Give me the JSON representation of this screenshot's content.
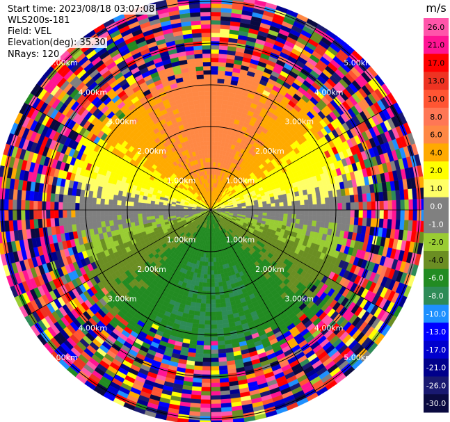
{
  "info": {
    "start_time": "Start time: 2023/08/18 03:07:08",
    "instrument": "WLS200s-181",
    "field": "Field: VEL",
    "elevation": "Elevation(deg): 35.30",
    "nrays": "NRays: 120"
  },
  "chart_data": {
    "type": "heatmap",
    "projection": "polar-ppi",
    "field": "VEL",
    "units": "m/s",
    "elevation_deg": 35.3,
    "n_rays": 120,
    "range_rings_km": [
      1,
      2,
      3,
      4,
      5
    ],
    "range_ring_labels": [
      "1.00km",
      "2.00km",
      "3.00km",
      "4.00km",
      "5.00km"
    ],
    "spoke_angles_deg": [
      0,
      30,
      60,
      90,
      120,
      150,
      180,
      210,
      240,
      270,
      300,
      330
    ],
    "velocity_pattern": {
      "north_sector_ms": 7,
      "south_sector_ms": -6,
      "east_west_ms": 0,
      "clean_range_km": 3.0,
      "noise_beyond_km": 3.2
    },
    "colorbar": {
      "label": "m/s",
      "ticks": [
        "26.0",
        "21.0",
        "17.0",
        "13.0",
        "10.0",
        "8.0",
        "6.0",
        "4.0",
        "2.0",
        "1.0",
        "0.0",
        "-1.0",
        "-2.0",
        "-4.0",
        "-6.0",
        "-8.0",
        "-10.0",
        "-13.0",
        "-17.0",
        "-21.0",
        "-26.0",
        "-30.0"
      ],
      "colors": [
        "#ff55aa",
        "#ff1493",
        "#ff0000",
        "#ee3322",
        "#ff5533",
        "#ff7755",
        "#ff8844",
        "#ffaa00",
        "#ffff00",
        "#ffff66",
        "#808080",
        "#808080",
        "#99cc33",
        "#6b8e23",
        "#228b22",
        "#2e8b57",
        "#1e90ff",
        "#0000ff",
        "#0000cd",
        "#00008b",
        "#191970",
        "#0a0a40"
      ]
    }
  }
}
